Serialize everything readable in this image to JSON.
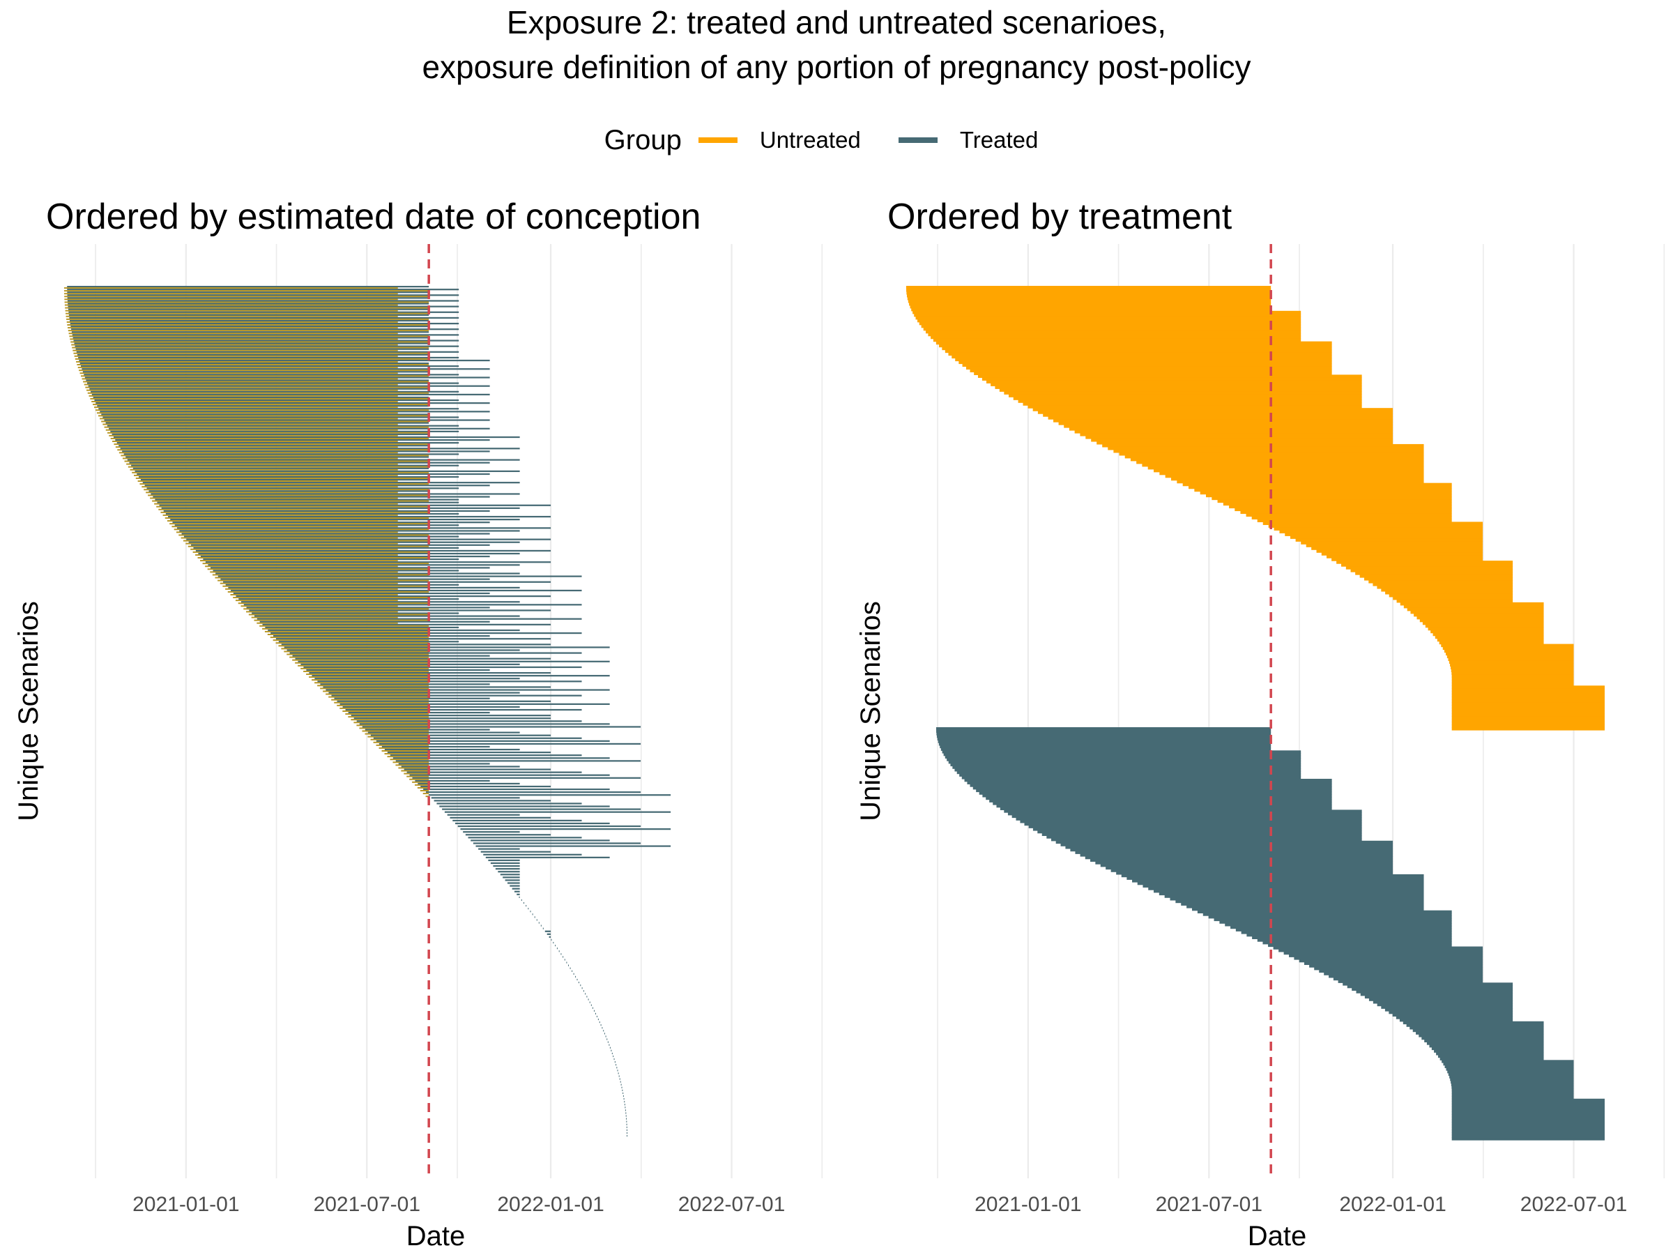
{
  "title_line1": "Exposure 2: treated and untreated scenarioes,",
  "title_line2": "exposure definition of any portion of pregnancy post-policy",
  "legend": {
    "title": "Group",
    "items": [
      {
        "label": "Untreated",
        "color": "#FFA500"
      },
      {
        "label": "Treated",
        "color": "#466A74"
      }
    ]
  },
  "colors": {
    "untreated": "#FFA500",
    "treated": "#466A74",
    "policy_line": "#D2464F",
    "grid": "#EBEBEB",
    "mixed": "#B99726"
  },
  "chart_data": [
    {
      "type": "gantt",
      "title": "Ordered by estimated date of conception",
      "xlabel": "Date",
      "ylabel": "Unique Scenarios",
      "x_ticks": [
        "2021-01-01",
        "2021-07-01",
        "2022-01-01",
        "2022-07-01"
      ],
      "xlim": [
        "2020-09-15",
        "2022-09-30"
      ],
      "policy_date": "2021-09-01",
      "ordering": "estimated date of conception",
      "scenario_count_approx": 300,
      "series": [
        {
          "name": "Untreated",
          "start_range": [
            "2020-09-01",
            "2022-03-15"
          ],
          "end_dates": [
            "2021-08-01",
            "2021-09-01"
          ]
        },
        {
          "name": "Treated",
          "start_range": [
            "2020-09-10",
            "2022-03-15"
          ],
          "end_range": [
            "2021-09-01",
            "2022-08-31"
          ]
        }
      ]
    },
    {
      "type": "gantt",
      "title": "Ordered by treatment",
      "xlabel": "Date",
      "ylabel": "Unique Scenarios",
      "x_ticks": [
        "2021-01-01",
        "2021-07-01",
        "2022-01-01",
        "2022-07-01"
      ],
      "xlim": [
        "2020-09-15",
        "2022-09-30"
      ],
      "policy_date": "2021-09-01",
      "ordering": "treatment group",
      "series": [
        {
          "name": "Untreated",
          "start_range": [
            "2020-09-01",
            "2022-03-01"
          ],
          "end_range": [
            "2021-09-01",
            "2022-08-31"
          ]
        },
        {
          "name": "Treated",
          "start_range": [
            "2020-10-01",
            "2022-03-01"
          ],
          "end_range": [
            "2021-09-01",
            "2022-08-31"
          ]
        }
      ]
    }
  ]
}
